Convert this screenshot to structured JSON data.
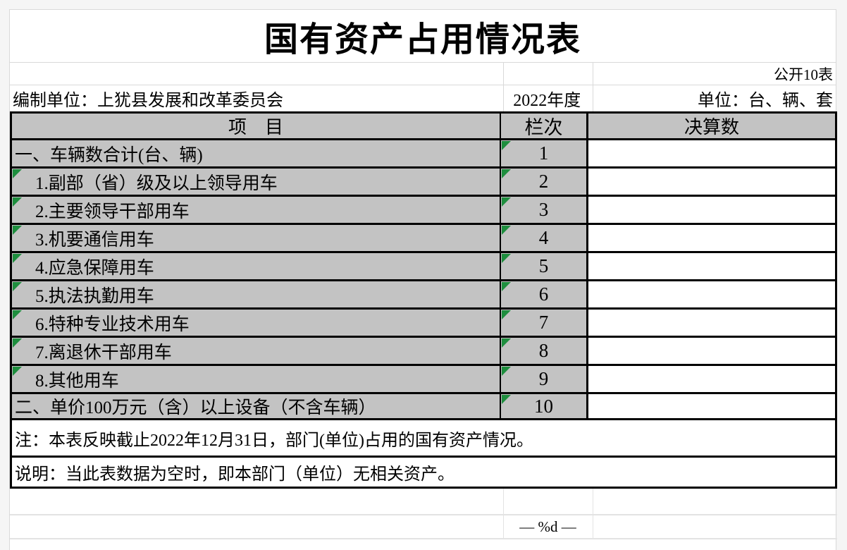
{
  "page": {
    "title": "国有资产占用情况表",
    "doc_label": "公开10表",
    "prepared_by": "编制单位：上犹县发展和改革委员会",
    "year": "2022年度",
    "unit_label": "单位：台、辆、套",
    "footer_page_number": "— %d —"
  },
  "table": {
    "headers": {
      "item": "项　目",
      "column": "栏次",
      "value": "决算数"
    },
    "rows": [
      {
        "item": "一、车辆数合计(台、辆)",
        "col": "1",
        "indent": false,
        "item_marker": false,
        "col_marker": true,
        "value": ""
      },
      {
        "item": "1.副部（省）级及以上领导用车",
        "col": "2",
        "indent": true,
        "item_marker": true,
        "col_marker": true,
        "value": ""
      },
      {
        "item": "2.主要领导干部用车",
        "col": "3",
        "indent": true,
        "item_marker": true,
        "col_marker": true,
        "value": ""
      },
      {
        "item": "3.机要通信用车",
        "col": "4",
        "indent": true,
        "item_marker": true,
        "col_marker": true,
        "value": ""
      },
      {
        "item": "4.应急保障用车",
        "col": "5",
        "indent": true,
        "item_marker": true,
        "col_marker": true,
        "value": ""
      },
      {
        "item": "5.执法执勤用车",
        "col": "6",
        "indent": true,
        "item_marker": true,
        "col_marker": true,
        "value": ""
      },
      {
        "item": "6.特种专业技术用车",
        "col": "7",
        "indent": true,
        "item_marker": true,
        "col_marker": true,
        "value": ""
      },
      {
        "item": "7.离退休干部用车",
        "col": "8",
        "indent": true,
        "item_marker": true,
        "col_marker": true,
        "value": ""
      },
      {
        "item": "8.其他用车",
        "col": "9",
        "indent": true,
        "item_marker": true,
        "col_marker": true,
        "value": ""
      },
      {
        "item": "二、单价100万元（含）以上设备（不含车辆）",
        "col": "10",
        "indent": false,
        "item_marker": false,
        "col_marker": true,
        "value": ""
      }
    ]
  },
  "notes": {
    "note1": "注：本表反映截止2022年12月31日，部门(单位)占用的国有资产情况。",
    "note2": "说明：当此表数据为空时，即本部门（单位）无相关资产。"
  },
  "colors": {
    "header_fill": "#c3c3c3",
    "marker_green": "#1e8e3e",
    "border_black": "#000000",
    "hairline_gray": "#d9d9d9"
  }
}
